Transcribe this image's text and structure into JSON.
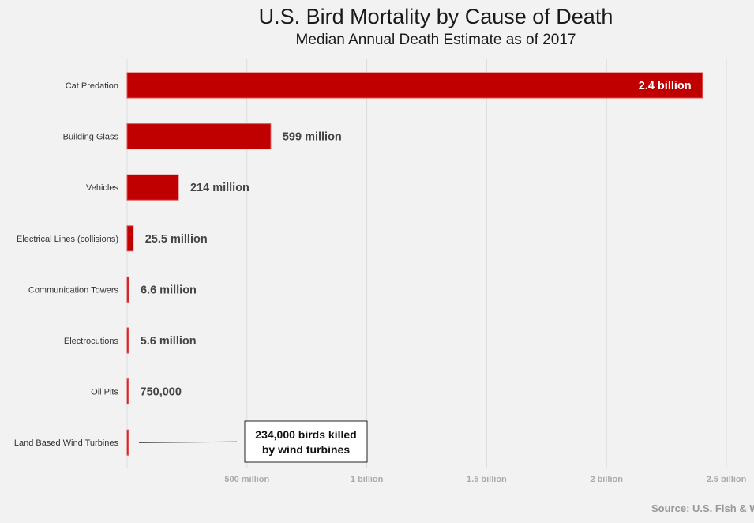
{
  "chart_data": {
    "type": "bar",
    "orientation": "horizontal",
    "title": "U.S. Bird Mortality by Cause of Death",
    "subtitle": "Median Annual Death Estimate as of 2017",
    "categories": [
      "Cat Predation",
      "Building Glass",
      "Vehicles",
      "Electrical Lines (collisions)",
      "Communication Towers",
      "Electrocutions",
      "Oil Pits",
      "Land Based Wind Turbines"
    ],
    "values": [
      2400000000,
      599000000,
      214000000,
      25500000,
      6600000,
      5600000,
      750000,
      234000
    ],
    "value_labels": [
      "2.4 billion",
      "599 million",
      "214 million",
      "25.5 million",
      "6.6 million",
      "5.6 million",
      "750,000",
      ""
    ],
    "xlim": [
      0,
      2500000000
    ],
    "xticks": [
      {
        "value": 500000000,
        "label": "500 million"
      },
      {
        "value": 1000000000,
        "label": "1 billion"
      },
      {
        "value": 1500000000,
        "label": "1.5 billion"
      },
      {
        "value": 2000000000,
        "label": "2 billion"
      },
      {
        "value": 2500000000,
        "label": "2.5 billion"
      }
    ],
    "grid": true,
    "bar_color": "#c00000",
    "annotation": {
      "lines": [
        "234,000 birds killed",
        "by wind turbines"
      ],
      "category": "Land Based Wind Turbines"
    },
    "source": "Source: U.S. Fish & W"
  }
}
